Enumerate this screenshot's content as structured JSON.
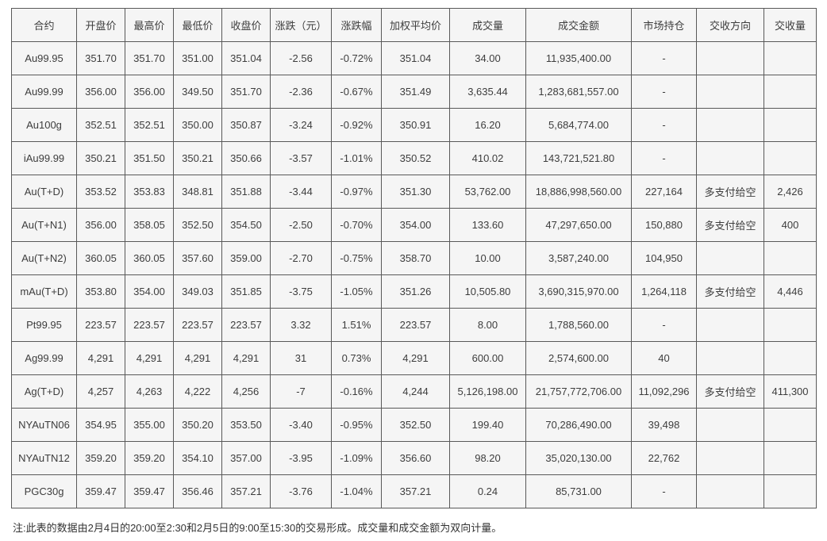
{
  "chart_data": {
    "type": "table",
    "title": "",
    "columns": [
      "合约",
      "开盘价",
      "最高价",
      "最低价",
      "收盘价",
      "涨跌（元）",
      "涨跌幅",
      "加权平均价",
      "成交量",
      "成交金额",
      "市场持仓",
      "交收方向",
      "交收量"
    ],
    "rows": [
      [
        "Au99.95",
        "351.70",
        "351.70",
        "351.00",
        "351.04",
        "-2.56",
        "-0.72%",
        "351.04",
        "34.00",
        "11,935,400.00",
        "-",
        "",
        ""
      ],
      [
        "Au99.99",
        "356.00",
        "356.00",
        "349.50",
        "351.70",
        "-2.36",
        "-0.67%",
        "351.49",
        "3,635.44",
        "1,283,681,557.00",
        "-",
        "",
        ""
      ],
      [
        "Au100g",
        "352.51",
        "352.51",
        "350.00",
        "350.87",
        "-3.24",
        "-0.92%",
        "350.91",
        "16.20",
        "5,684,774.00",
        "-",
        "",
        ""
      ],
      [
        "iAu99.99",
        "350.21",
        "351.50",
        "350.21",
        "350.66",
        "-3.57",
        "-1.01%",
        "350.52",
        "410.02",
        "143,721,521.80",
        "-",
        "",
        ""
      ],
      [
        "Au(T+D)",
        "353.52",
        "353.83",
        "348.81",
        "351.88",
        "-3.44",
        "-0.97%",
        "351.30",
        "53,762.00",
        "18,886,998,560.00",
        "227,164",
        "多支付给空",
        "2,426"
      ],
      [
        "Au(T+N1)",
        "356.00",
        "358.05",
        "352.50",
        "354.50",
        "-2.50",
        "-0.70%",
        "354.00",
        "133.60",
        "47,297,650.00",
        "150,880",
        "多支付给空",
        "400"
      ],
      [
        "Au(T+N2)",
        "360.05",
        "360.05",
        "357.60",
        "359.00",
        "-2.70",
        "-0.75%",
        "358.70",
        "10.00",
        "3,587,240.00",
        "104,950",
        "",
        ""
      ],
      [
        "mAu(T+D)",
        "353.80",
        "354.00",
        "349.03",
        "351.85",
        "-3.75",
        "-1.05%",
        "351.26",
        "10,505.80",
        "3,690,315,970.00",
        "1,264,118",
        "多支付给空",
        "4,446"
      ],
      [
        "Pt99.95",
        "223.57",
        "223.57",
        "223.57",
        "223.57",
        "3.32",
        "1.51%",
        "223.57",
        "8.00",
        "1,788,560.00",
        "-",
        "",
        ""
      ],
      [
        "Ag99.99",
        "4,291",
        "4,291",
        "4,291",
        "4,291",
        "31",
        "0.73%",
        "4,291",
        "600.00",
        "2,574,600.00",
        "40",
        "",
        ""
      ],
      [
        "Ag(T+D)",
        "4,257",
        "4,263",
        "4,222",
        "4,256",
        "-7",
        "-0.16%",
        "4,244",
        "5,126,198.00",
        "21,757,772,706.00",
        "11,092,296",
        "多支付给空",
        "411,300"
      ],
      [
        "NYAuTN06",
        "354.95",
        "355.00",
        "350.20",
        "353.50",
        "-3.40",
        "-0.95%",
        "352.50",
        "199.40",
        "70,286,490.00",
        "39,498",
        "",
        ""
      ],
      [
        "NYAuTN12",
        "359.20",
        "359.20",
        "354.10",
        "357.00",
        "-3.95",
        "-1.09%",
        "356.60",
        "98.20",
        "35,020,130.00",
        "22,762",
        "",
        ""
      ],
      [
        "PGC30g",
        "359.47",
        "359.47",
        "356.46",
        "357.21",
        "-3.76",
        "-1.04%",
        "357.21",
        "0.24",
        "85,731.00",
        "-",
        "",
        ""
      ]
    ],
    "note": "注:此表的数据由2月4日的20:00至2:30和2月5日的9:00至15:30的交易形成。成交量和成交金额为双向计量。"
  },
  "colors": {
    "page_bg": "#ffffff",
    "cell_bg": "#f5f5f5",
    "border": "#595959",
    "text": "#3d3d3d"
  }
}
